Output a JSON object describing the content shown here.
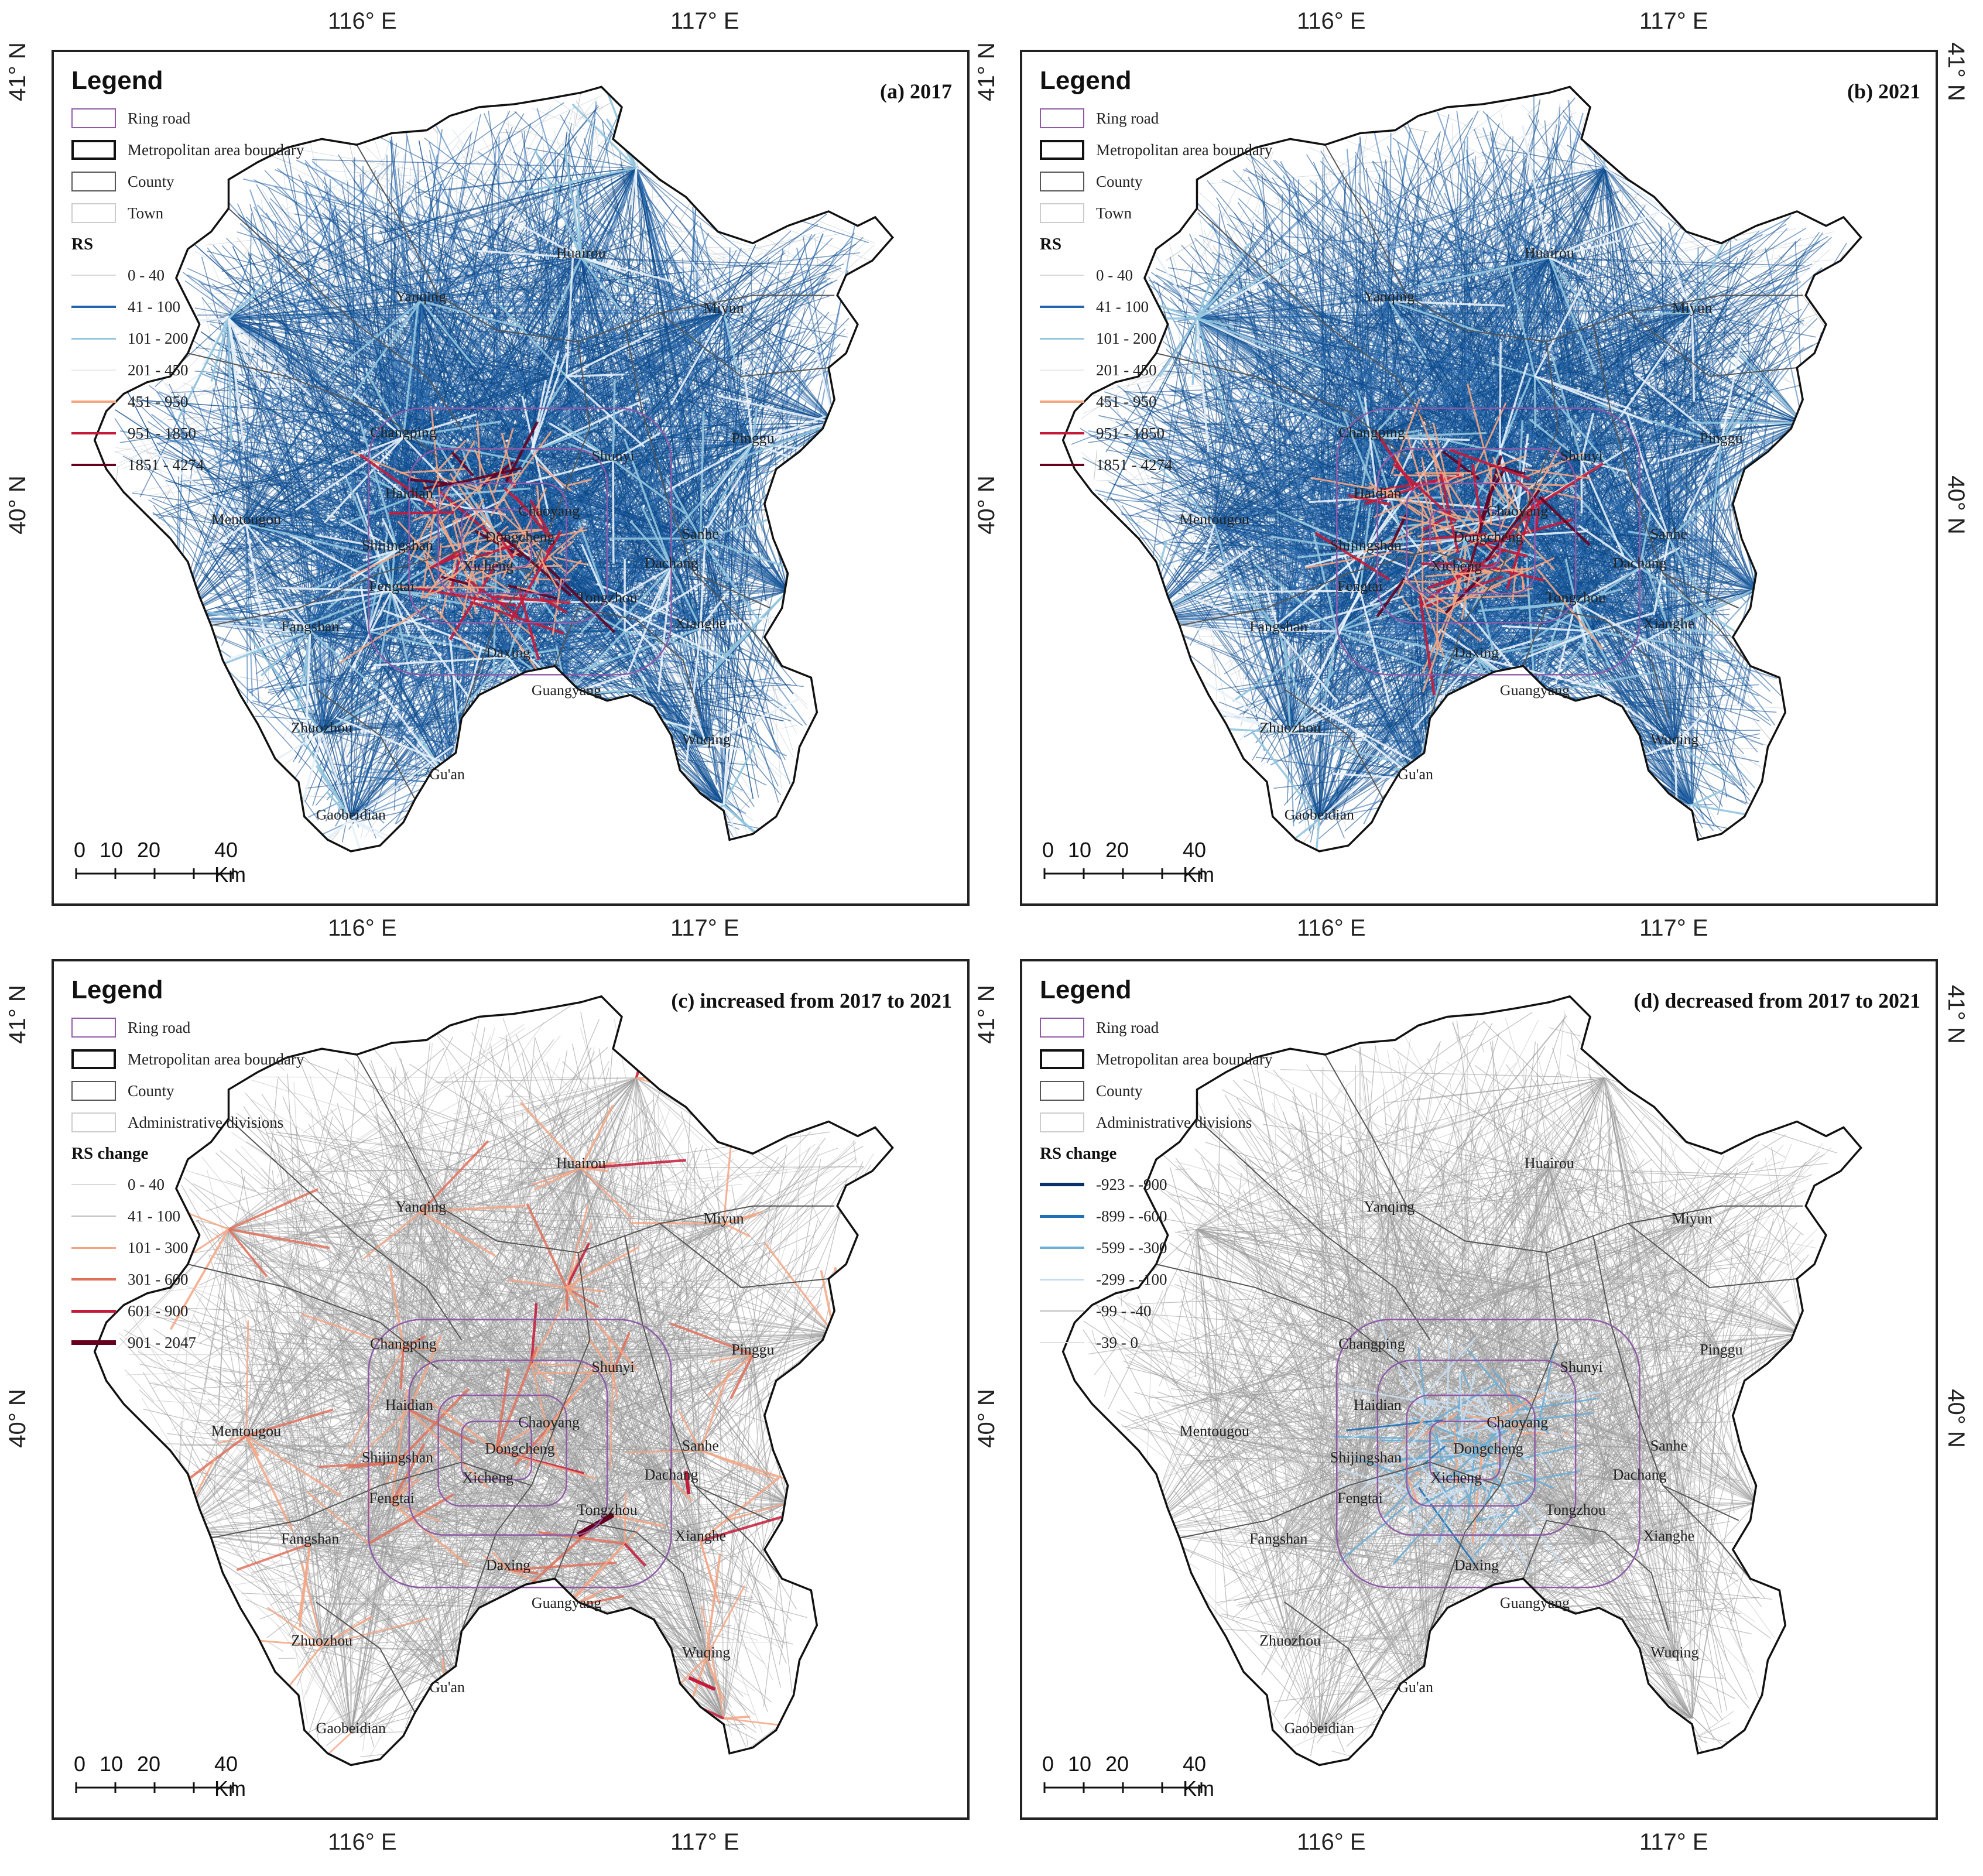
{
  "panels": [
    {
      "id": "a",
      "title": "(a) 2017",
      "mode": "blue",
      "legend": {
        "title": "Legend",
        "items": [
          "Ring road",
          "Metropolitan area boundary",
          "County",
          "Town"
        ],
        "subtitle": "RS",
        "classes": [
          {
            "label": "0 - 40",
            "color": "#d9d9d9",
            "width": 2
          },
          {
            "label": "41 - 100",
            "color": "#2166ac",
            "width": 4
          },
          {
            "label": "101 - 200",
            "color": "#92c5de",
            "width": 3
          },
          {
            "label": "201 - 450",
            "color": "#eeeeee",
            "width": 3
          },
          {
            "label": "451 - 950",
            "color": "#f4a582",
            "width": 4
          },
          {
            "label": "951 - 1850",
            "color": "#c51b3a",
            "width": 4
          },
          {
            "label": "1851 - 4274",
            "color": "#67001f",
            "width": 4
          }
        ]
      },
      "scale": {
        "labels": [
          "0",
          "10",
          "20",
          "40 Km"
        ]
      },
      "places": [
        "Huairou",
        "Yanqing",
        "Miyun",
        "Changping",
        "Pinggu",
        "Shunyi",
        "Haidian",
        "Mentougou",
        "Chaoyang",
        "Dongcheng",
        "Sanhe",
        "Shijingshan",
        "Xicheng",
        "Dachang",
        "Fengtai",
        "Tongzhou",
        "Fangshan",
        "Xianghe",
        "Daxing",
        "Guangyang",
        "Zhuozhou",
        "Wuqing",
        "Gu'an",
        "Gaobeidian"
      ]
    },
    {
      "id": "b",
      "title": "(b) 2021",
      "mode": "blue",
      "legend": {
        "title": "Legend",
        "items": [
          "Ring road",
          "Metropolitan area boundary",
          "County",
          "Town"
        ],
        "subtitle": "RS",
        "classes": [
          {
            "label": "0 - 40",
            "color": "#d9d9d9",
            "width": 2
          },
          {
            "label": "41 - 100",
            "color": "#2166ac",
            "width": 4
          },
          {
            "label": "101 - 200",
            "color": "#92c5de",
            "width": 3
          },
          {
            "label": "201 - 450",
            "color": "#eeeeee",
            "width": 3
          },
          {
            "label": "451 - 950",
            "color": "#f4a582",
            "width": 4
          },
          {
            "label": "951 - 1850",
            "color": "#c51b3a",
            "width": 4
          },
          {
            "label": "1851 - 4274",
            "color": "#67001f",
            "width": 4
          }
        ]
      },
      "scale": {
        "labels": [
          "0",
          "10",
          "20",
          "40 Km"
        ]
      },
      "places": [
        "Huairou",
        "Yanqing",
        "Miyun",
        "Changping",
        "Pinggu",
        "Shunyi",
        "Haidian",
        "Mentougou",
        "Chaoyang",
        "Dongcheng",
        "Sanhe",
        "Shijingshan",
        "Xicheng",
        "Dachang",
        "Fengtai",
        "Tongzhou",
        "Fangshan",
        "Xianghe",
        "Daxing",
        "Guangyang",
        "Zhuozhou",
        "Wuqing",
        "Gu'an",
        "Gaobeidian"
      ]
    },
    {
      "id": "c",
      "title": "(c) increased from 2017 to 2021",
      "mode": "red",
      "legend": {
        "title": "Legend",
        "items": [
          "Ring road",
          "Metropolitan area boundary",
          "County",
          "Administrative divisions"
        ],
        "subtitle": "RS change",
        "classes": [
          {
            "label": "0 - 40",
            "color": "#d9d9d9",
            "width": 2
          },
          {
            "label": "41 - 100",
            "color": "#bdbdbd",
            "width": 2
          },
          {
            "label": "101 - 300",
            "color": "#f4a582",
            "width": 3
          },
          {
            "label": "301 - 600",
            "color": "#e0705a",
            "width": 4
          },
          {
            "label": "601 - 900",
            "color": "#c51b3a",
            "width": 5
          },
          {
            "label": "901 - 2047",
            "color": "#67001f",
            "width": 8
          }
        ]
      },
      "scale": {
        "labels": [
          "0",
          "10",
          "20",
          "40 Km"
        ]
      },
      "places": [
        "Huairou",
        "Yanqing",
        "Miyun",
        "Changping",
        "Pinggu",
        "Shunyi",
        "Haidian",
        "Mentougou",
        "Chaoyang",
        "Dongcheng",
        "Sanhe",
        "Shijingshan",
        "Xicheng",
        "Dachang",
        "Fengtai",
        "Tongzhou",
        "Fangshan",
        "Xianghe",
        "Daxing",
        "Guangyang",
        "Zhuozhou",
        "Wuqing",
        "Gu'an",
        "Gaobeidian"
      ]
    },
    {
      "id": "d",
      "title": "(d) decreased from 2017 to 2021",
      "mode": "grey",
      "legend": {
        "title": "Legend",
        "items": [
          "Ring road",
          "Metropolitan area boundary",
          "County",
          "Administrative divisions"
        ],
        "subtitle": "RS change",
        "classes": [
          {
            "label": "-923 - -900",
            "color": "#08306b",
            "width": 6
          },
          {
            "label": "-899 - -600",
            "color": "#2171b5",
            "width": 5
          },
          {
            "label": "-599 - -300",
            "color": "#6baed6",
            "width": 4
          },
          {
            "label": "-299 - -100",
            "color": "#c6dbef",
            "width": 3
          },
          {
            "label": "-99 - -40",
            "color": "#bdbdbd",
            "width": 2
          },
          {
            "label": "-39 - 0",
            "color": "#e0e0e0",
            "width": 2
          }
        ]
      },
      "scale": {
        "labels": [
          "0",
          "10",
          "20",
          "40 Km"
        ]
      },
      "places": [
        "Huairou",
        "Yanqing",
        "Miyun",
        "Changping",
        "Pinggu",
        "Shunyi",
        "Haidian",
        "Mentougou",
        "Chaoyang",
        "Dongcheng",
        "Sanhe",
        "Shijingshan",
        "Xicheng",
        "Dachang",
        "Fengtai",
        "Tongzhou",
        "Fangshan",
        "Xianghe",
        "Daxing",
        "Guangyang",
        "Zhuozhou",
        "Wuqing",
        "Gu'an",
        "Gaobeidian"
      ]
    }
  ],
  "graticule": {
    "lon": [
      "116° E",
      "117° E"
    ],
    "lat": [
      "41° N",
      "40° N"
    ]
  },
  "colors": {
    "ring_road": "#8e5aa6",
    "boundary": "#111111",
    "county": "#555555",
    "town": "#cccccc"
  }
}
